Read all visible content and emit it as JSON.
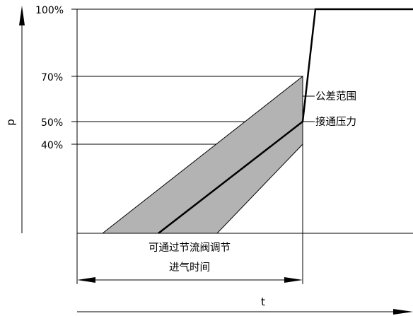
{
  "figure": {
    "y_axis_label": "p",
    "x_axis_label": "t",
    "y_ticks": [
      {
        "label": "100%",
        "value": 100
      },
      {
        "label": "70%",
        "value": 70
      },
      {
        "label": "50%",
        "value": 50
      },
      {
        "label": "40%",
        "value": 40
      }
    ],
    "annotations": {
      "tolerance_band": "公差范围",
      "switching_pressure": "接通压力"
    },
    "time_span_label": {
      "line1": "可通过节流阀调节",
      "line2": "进气时间"
    },
    "colors": {
      "band_fill": "#b3b3b3",
      "line": "#000000",
      "background": "#ffffff"
    }
  }
}
